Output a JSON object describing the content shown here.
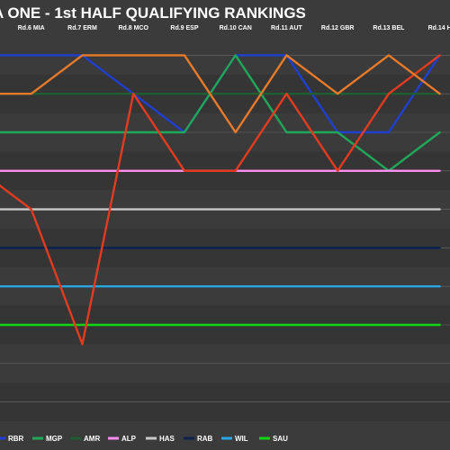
{
  "chart_data": {
    "type": "line",
    "title": "A ONE - 1st HALF QUALIFYING RANKINGS",
    "xlabel": "",
    "ylabel": "",
    "x": [
      "Rd.6 MIA",
      "Rd.7 ERM",
      "Rd.8 MCO",
      "Rd.9 ESP",
      "Rd.10 CAN",
      "Rd.11 AUT",
      "Rd.12 GBR",
      "Rd.13 BEL",
      "Rd.14 H"
    ],
    "x_index": [
      1,
      2,
      3,
      4,
      5,
      6,
      7,
      8,
      9
    ],
    "x_range": [
      0,
      9.2
    ],
    "ylim": [
      0.5,
      10.5
    ],
    "y_inverted": true,
    "grid": true,
    "legend_position": "bottom",
    "series": [
      {
        "name": "RBR",
        "color": "#1f3fd0",
        "x": [
          0,
          1,
          2,
          3,
          4,
          5,
          6,
          7,
          8,
          9
        ],
        "values": [
          1,
          1,
          1,
          2,
          3,
          1,
          1,
          3,
          3,
          1
        ]
      },
      {
        "name": "MGP",
        "color": "#1fa85a",
        "x": [
          0,
          1,
          2,
          3,
          4,
          5,
          6,
          7,
          8,
          9
        ],
        "values": [
          3,
          3,
          3,
          3,
          3,
          1,
          3,
          3,
          4,
          3
        ]
      },
      {
        "name": "AMR",
        "color": "#1f5e32",
        "x": [
          0,
          1,
          2,
          3,
          4,
          5,
          6,
          7,
          8,
          9
        ],
        "values": [
          2,
          2,
          2,
          2,
          2,
          2,
          2,
          2,
          2,
          2
        ]
      },
      {
        "name": "ALP",
        "color": "#ff8ef0",
        "x": [
          0,
          1,
          2,
          3,
          4,
          5,
          6,
          7,
          8,
          9
        ],
        "values": [
          4,
          4,
          4,
          4,
          4,
          4,
          4,
          4,
          4,
          4
        ]
      },
      {
        "name": "HAS",
        "color": "#c8c8c8",
        "x": [
          0,
          1,
          2,
          3,
          4,
          5,
          6,
          7,
          8,
          9
        ],
        "values": [
          5,
          5,
          5,
          5,
          5,
          5,
          5,
          5,
          5,
          5
        ]
      },
      {
        "name": "RAB",
        "color": "#0b2250",
        "x": [
          0,
          1,
          2,
          3,
          4,
          5,
          6,
          7,
          8,
          9
        ],
        "values": [
          6,
          6,
          6,
          6,
          6,
          6,
          6,
          6,
          6,
          6
        ]
      },
      {
        "name": "WIL",
        "color": "#2aa7e0",
        "x": [
          0,
          1,
          2,
          3,
          4,
          5,
          6,
          7,
          8,
          9
        ],
        "values": [
          7,
          7,
          7,
          7,
          7,
          7,
          7,
          7,
          7,
          7
        ]
      },
      {
        "name": "SAU",
        "color": "#12d612",
        "x": [
          0,
          1,
          2,
          3,
          4,
          5,
          6,
          7,
          8,
          9
        ],
        "values": [
          8,
          8,
          8,
          8,
          8,
          8,
          8,
          8,
          8,
          8
        ]
      },
      {
        "name": "",
        "color": "#e33b1f",
        "x": [
          0,
          1,
          2,
          3,
          4,
          5,
          6,
          7,
          8,
          9
        ],
        "values": [
          4,
          5,
          8.5,
          2,
          4,
          4,
          2,
          4,
          2,
          1
        ]
      },
      {
        "name": "",
        "color": "#e87a2a",
        "x": [
          0,
          1,
          2,
          3,
          4,
          5,
          6,
          7,
          8,
          9
        ],
        "values": [
          2,
          2,
          1,
          1,
          1,
          3,
          1,
          2,
          1,
          2
        ]
      }
    ]
  }
}
